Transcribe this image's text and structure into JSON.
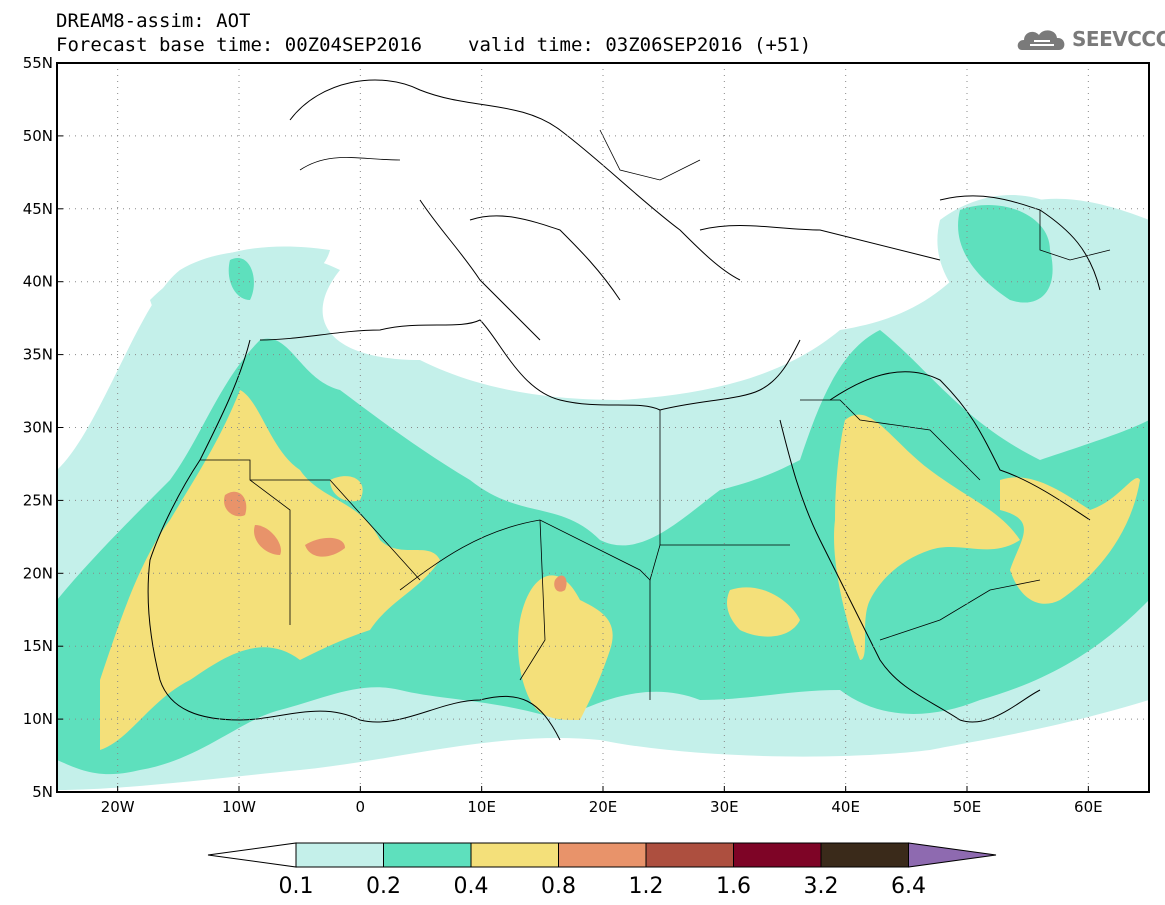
{
  "header": {
    "line1": "DREAM8-assim: AOT",
    "base_time": "Forecast base time: 00Z04SEP2016",
    "valid_time": "valid time: 03Z06SEP2016 (+51)"
  },
  "logo": {
    "text": "SEEVCCC",
    "icon": "cloud-icon",
    "color": "#7a7a7a"
  },
  "map": {
    "lon_range": [
      -25,
      65
    ],
    "lat_range": [
      5,
      55
    ],
    "lon_ticks": [
      {
        "value": -20,
        "label": "20W"
      },
      {
        "value": -10,
        "label": "10W"
      },
      {
        "value": 0,
        "label": "0"
      },
      {
        "value": 10,
        "label": "10E"
      },
      {
        "value": 20,
        "label": "20E"
      },
      {
        "value": 30,
        "label": "30E"
      },
      {
        "value": 40,
        "label": "40E"
      },
      {
        "value": 50,
        "label": "50E"
      },
      {
        "value": 60,
        "label": "60E"
      }
    ],
    "lat_ticks": [
      {
        "value": 5,
        "label": "5N"
      },
      {
        "value": 10,
        "label": "10N"
      },
      {
        "value": 15,
        "label": "15N"
      },
      {
        "value": 20,
        "label": "20N"
      },
      {
        "value": 25,
        "label": "25N"
      },
      {
        "value": 30,
        "label": "30N"
      },
      {
        "value": 35,
        "label": "35N"
      },
      {
        "value": 40,
        "label": "40N"
      },
      {
        "value": 45,
        "label": "45N"
      },
      {
        "value": 50,
        "label": "50N"
      },
      {
        "value": 55,
        "label": "55N"
      }
    ],
    "grid": "dotted"
  },
  "colorbar": {
    "labels": [
      "0.1",
      "0.2",
      "0.4",
      "0.8",
      "1.2",
      "1.6",
      "3.2",
      "6.4"
    ],
    "colors": [
      "#ffffff",
      "#c4f0ea",
      "#5ee0bd",
      "#f4e07a",
      "#e8936a",
      "#ad4f3f",
      "#7e0426",
      "#3a2a1a",
      "#8e6ab0"
    ]
  }
}
